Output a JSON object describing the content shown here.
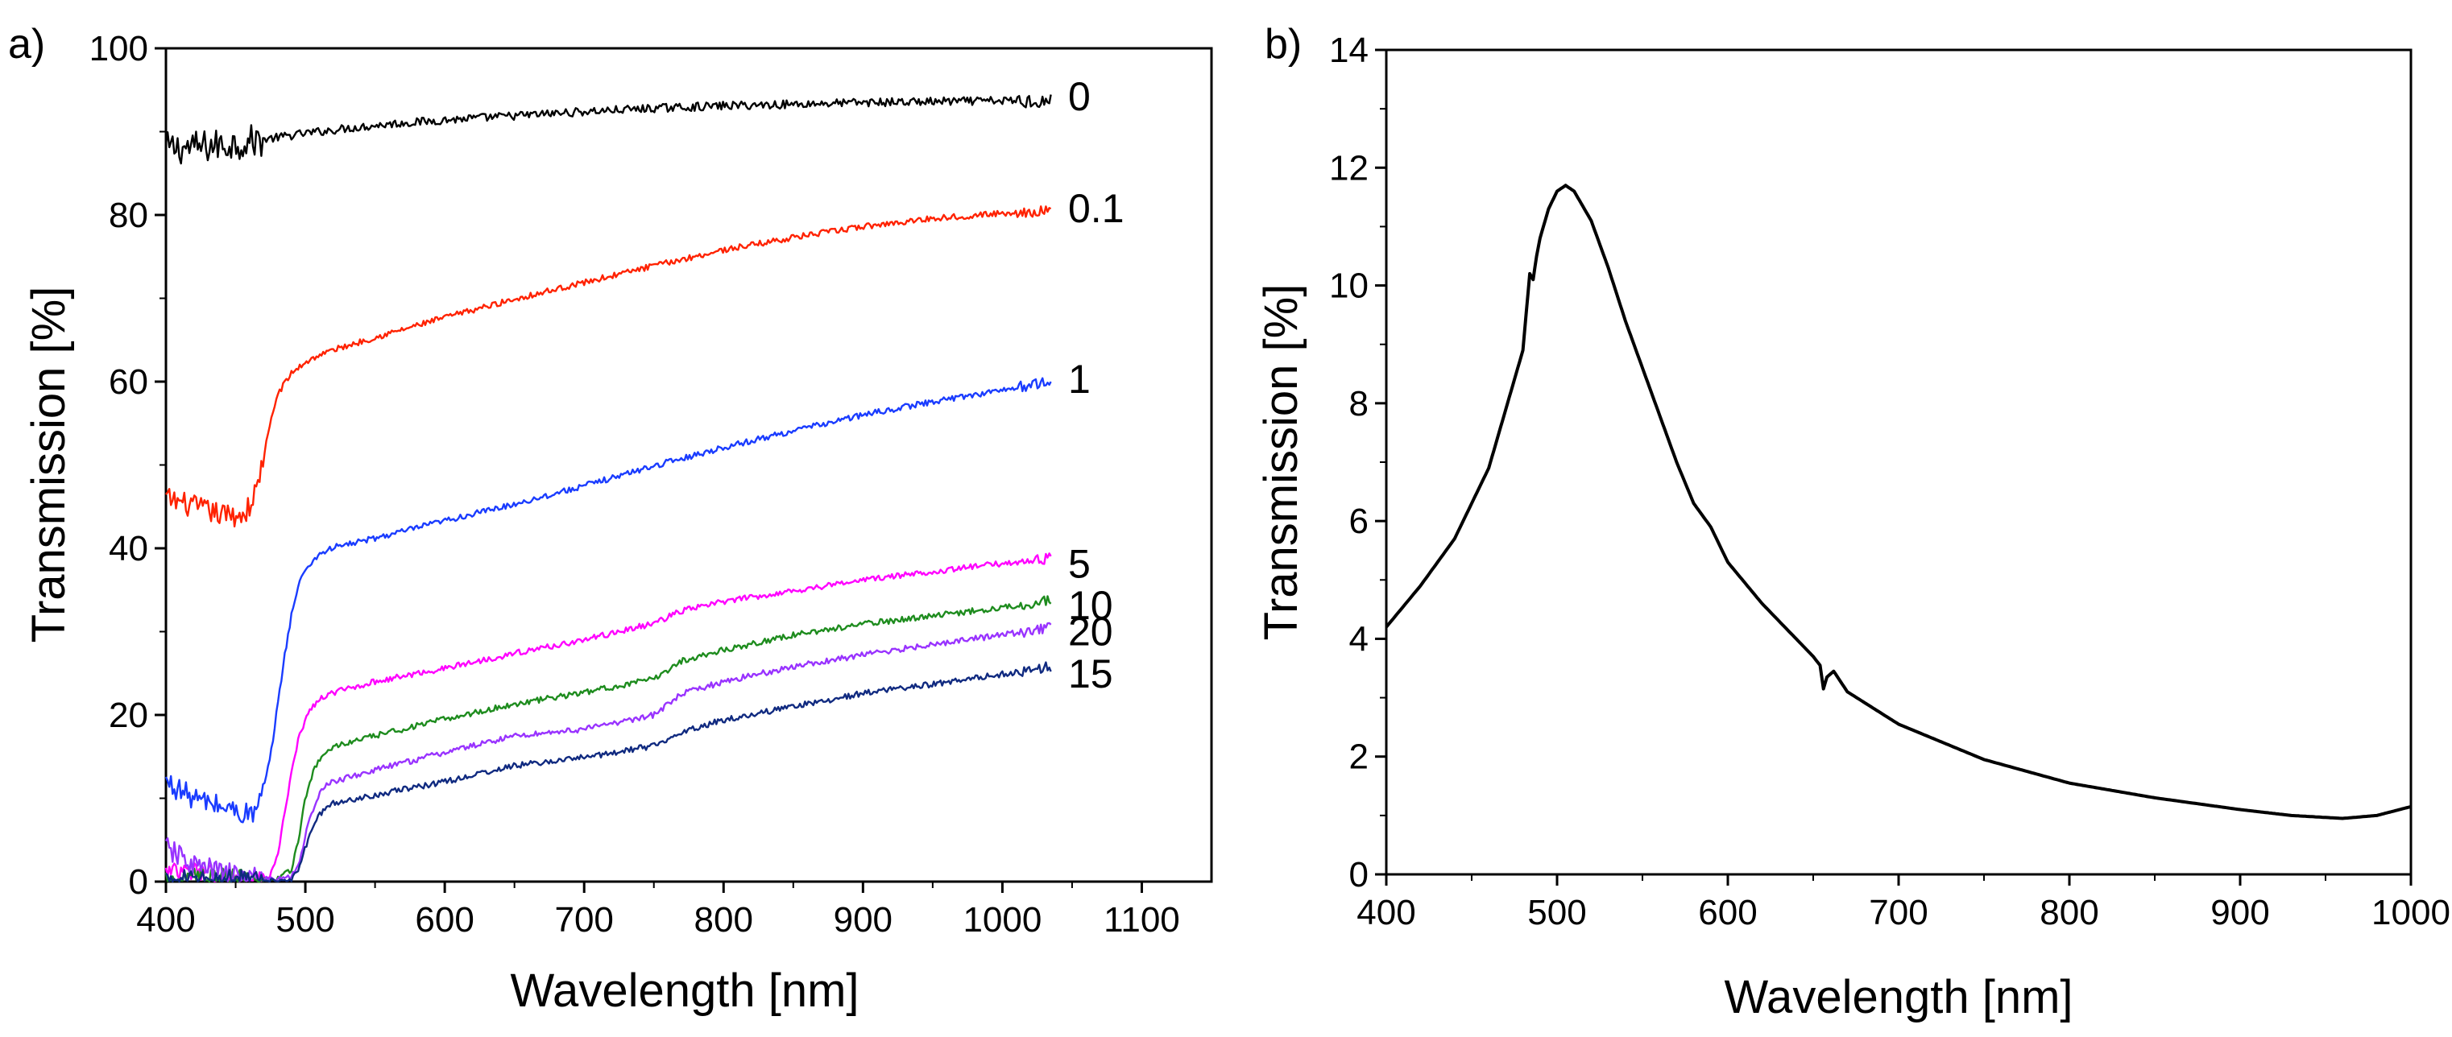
{
  "figure": {
    "panels": [
      {
        "panel_label": "a)",
        "type": "line",
        "xlabel": "Wavelength [nm]",
        "ylabel": "Transmission [%]",
        "xlim": [
          400,
          1150
        ],
        "ylim": [
          0,
          100
        ],
        "xticks": [
          400,
          500,
          600,
          700,
          800,
          900,
          1000,
          1100
        ],
        "yticks": [
          0,
          20,
          40,
          60,
          80,
          100
        ],
        "series": [
          {
            "name": "0",
            "color": "#000000",
            "x": [
              400,
              420,
              440,
              460,
              480,
              500,
              530,
              560,
              600,
              650,
              700,
              750,
              800,
              850,
              900,
              950,
              1000,
              1035
            ],
            "y": [
              88,
              88.1,
              88.4,
              88.8,
              89.3,
              89.8,
              90.4,
              90.9,
              91.4,
              91.9,
              92.4,
              92.8,
              93.1,
              93.3,
              93.5,
              93.6,
              93.7,
              93.7
            ],
            "noise": 0.5
          },
          {
            "name": "0.1",
            "color": "#ff2200",
            "x": [
              400,
              420,
              440,
              455,
              460,
              465,
              470,
              475,
              480,
              490,
              500,
              510,
              520,
              550,
              600,
              650,
              700,
              750,
              800,
              850,
              900,
              950,
              1000,
              1035
            ],
            "y": [
              46,
              45,
              44,
              44,
              45,
              47,
              51,
              55,
              58.5,
              61,
              62.3,
              63.2,
              63.8,
              65.3,
              67.7,
              69.9,
              71.9,
              73.9,
              75.8,
              77.3,
              78.6,
              79.6,
              80.2,
              80.5
            ],
            "noise": 0.35
          },
          {
            "name": "1",
            "color": "#1a3cff",
            "x": [
              400,
              420,
              440,
              460,
              465,
              470,
              475,
              480,
              485,
              490,
              495,
              500,
              510,
              520,
              550,
              600,
              650,
              700,
              750,
              800,
              850,
              900,
              950,
              1000,
              1035
            ],
            "y": [
              12,
              10,
              9,
              8,
              8.5,
              11,
              15,
              21,
              27,
              32,
              35.5,
              37.5,
              39.3,
              40.1,
              41.2,
              43.3,
              45.3,
              47.5,
              49.9,
              52.1,
              54.1,
              56,
              57.6,
              59,
              60
            ],
            "noise": 0.35
          },
          {
            "name": "5",
            "color": "#ff00ff",
            "x": [
              400,
              420,
              440,
              460,
              470,
              475,
              480,
              485,
              490,
              495,
              500,
              505,
              510,
              520,
              550,
              600,
              650,
              700,
              750,
              770,
              800,
              850,
              900,
              950,
              1000,
              1035
            ],
            "y": [
              1,
              1,
              0.5,
              0.2,
              0.2,
              0.8,
              3,
              8,
              13,
              17,
              19.5,
              21,
              21.8,
              22.7,
              24,
              25.6,
              27.4,
              29,
              31,
              32.5,
              33.6,
              34.9,
              36.2,
              37.2,
              38.2,
              38.8
            ],
            "noise": 0.35
          },
          {
            "name": "10",
            "color": "#1e8c1e",
            "x": [
              400,
              440,
              470,
              480,
              490,
              495,
              500,
              505,
              510,
              515,
              520,
              550,
              600,
              650,
              700,
              750,
              770,
              800,
              850,
              900,
              950,
              1000,
              1035
            ],
            "y": [
              0.3,
              0.2,
              0.2,
              0.3,
              1.5,
              5,
              10,
              13,
              14.5,
              15.5,
              16.2,
              17.5,
              19.5,
              21.3,
              22.7,
              24.3,
              26.5,
              27.8,
              29.6,
              30.9,
              31.9,
              32.9,
              33.8
            ],
            "noise": 0.35
          },
          {
            "name": "20",
            "color": "#9933ff",
            "x": [
              400,
              420,
              440,
              460,
              480,
              490,
              495,
              500,
              505,
              510,
              515,
              520,
              550,
              600,
              650,
              700,
              750,
              770,
              800,
              850,
              900,
              950,
              1000,
              1035
            ],
            "y": [
              4,
              2,
              1,
              0.4,
              0.3,
              0.6,
              2,
              5.5,
              8.5,
              10.5,
              11.5,
              12,
              13.4,
              15.5,
              17.5,
              18.3,
              20,
              22.5,
              24,
              25.8,
              27.2,
              28.5,
              29.6,
              30.5
            ],
            "noise": 0.35
          },
          {
            "name": "15",
            "color": "#102a80",
            "x": [
              400,
              470,
              480,
              490,
              495,
              500,
              505,
              510,
              515,
              520,
              550,
              600,
              650,
              700,
              750,
              770,
              800,
              850,
              900,
              950,
              1000,
              1035
            ],
            "y": [
              0,
              0,
              0,
              0.3,
              1.5,
              4,
              6.5,
              8,
              8.8,
              9.4,
              10.4,
              12,
              13.9,
              14.9,
              16.3,
              18,
              19.4,
              21,
              22.6,
              23.7,
              24.9,
              25.8
            ],
            "noise": 0.35
          }
        ]
      },
      {
        "panel_label": "b)",
        "type": "line",
        "xlabel": "Wavelength [nm]",
        "ylabel": "Transmission [%]",
        "xlim": [
          400,
          1000
        ],
        "ylim": [
          0,
          14
        ],
        "xticks": [
          400,
          500,
          600,
          700,
          800,
          900,
          1000
        ],
        "yticks": [
          0,
          2,
          4,
          6,
          8,
          10,
          12,
          14
        ],
        "series": [
          {
            "name": "",
            "color": "#000000",
            "x": [
              400,
              420,
              440,
              460,
              480,
              484,
              486,
              488,
              490,
              495,
              500,
              505,
              510,
              520,
              530,
              540,
              550,
              560,
              570,
              580,
              590,
              600,
              620,
              640,
              650,
              654,
              656,
              658,
              662,
              670,
              700,
              750,
              800,
              850,
              900,
              930,
              960,
              980,
              1000
            ],
            "y": [
              4.2,
              4.9,
              5.7,
              6.9,
              8.9,
              10.2,
              10.1,
              10.5,
              10.8,
              11.3,
              11.6,
              11.7,
              11.6,
              11.1,
              10.3,
              9.4,
              8.6,
              7.8,
              7.0,
              6.3,
              5.9,
              5.3,
              4.6,
              4.0,
              3.7,
              3.55,
              3.15,
              3.35,
              3.45,
              3.1,
              2.55,
              1.95,
              1.55,
              1.3,
              1.1,
              1.0,
              0.95,
              1.0,
              1.15
            ],
            "noise": 0
          }
        ]
      }
    ]
  }
}
